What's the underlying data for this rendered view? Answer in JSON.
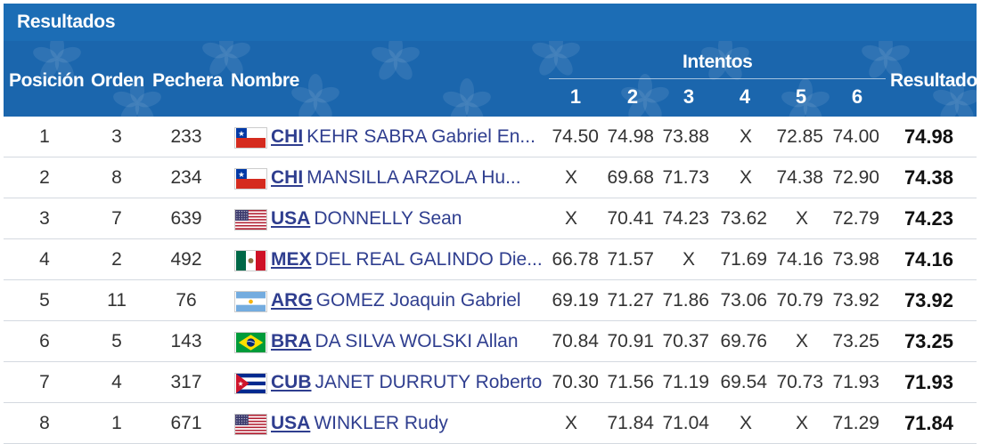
{
  "table_title": "Resultados",
  "headers": {
    "posicion": "Posición",
    "orden": "Orden",
    "pechera": "Pechera",
    "nombre": "Nombre",
    "intentos": "Intentos",
    "attempts": [
      "1",
      "2",
      "3",
      "4",
      "5",
      "6"
    ],
    "resultado": "Resultado"
  },
  "colors": {
    "title_bar": "#1c6db5",
    "header_bg": "#1b66ad",
    "name_link": "#2f3e8f"
  },
  "rows": [
    {
      "posicion": "1",
      "orden": "3",
      "pechera": "233",
      "flag": "chile-flag-icon",
      "country": "CHI",
      "name": "KEHR SABRA Gabriel En...",
      "attempts": [
        "74.50",
        "74.98",
        "73.88",
        "X",
        "72.85",
        "74.00"
      ],
      "resultado": "74.98"
    },
    {
      "posicion": "2",
      "orden": "8",
      "pechera": "234",
      "flag": "chile-flag-icon",
      "country": "CHI",
      "name": "MANSILLA ARZOLA Hu...",
      "attempts": [
        "X",
        "69.68",
        "71.73",
        "X",
        "74.38",
        "72.90"
      ],
      "resultado": "74.38"
    },
    {
      "posicion": "3",
      "orden": "7",
      "pechera": "639",
      "flag": "usa-flag-icon",
      "country": "USA",
      "name": "DONNELLY Sean",
      "attempts": [
        "X",
        "70.41",
        "74.23",
        "73.62",
        "X",
        "72.79"
      ],
      "resultado": "74.23"
    },
    {
      "posicion": "4",
      "orden": "2",
      "pechera": "492",
      "flag": "mexico-flag-icon",
      "country": "MEX",
      "name": "DEL REAL GALINDO Die...",
      "attempts": [
        "66.78",
        "71.57",
        "X",
        "71.69",
        "74.16",
        "73.98"
      ],
      "resultado": "74.16"
    },
    {
      "posicion": "5",
      "orden": "11",
      "pechera": "76",
      "flag": "argentina-flag-icon",
      "country": "ARG",
      "name": "GOMEZ Joaquin Gabriel",
      "attempts": [
        "69.19",
        "71.27",
        "71.86",
        "73.06",
        "70.79",
        "73.92"
      ],
      "resultado": "73.92"
    },
    {
      "posicion": "6",
      "orden": "5",
      "pechera": "143",
      "flag": "brazil-flag-icon",
      "country": "BRA",
      "name": "DA SILVA WOLSKI Allan",
      "attempts": [
        "70.84",
        "70.91",
        "70.37",
        "69.76",
        "X",
        "73.25"
      ],
      "resultado": "73.25"
    },
    {
      "posicion": "7",
      "orden": "4",
      "pechera": "317",
      "flag": "cuba-flag-icon",
      "country": "CUB",
      "name": "JANET DURRUTY Roberto",
      "attempts": [
        "70.30",
        "71.56",
        "71.19",
        "69.54",
        "70.73",
        "71.93"
      ],
      "resultado": "71.93"
    },
    {
      "posicion": "8",
      "orden": "1",
      "pechera": "671",
      "flag": "usa-flag-icon",
      "country": "USA",
      "name": "WINKLER Rudy",
      "attempts": [
        "X",
        "71.84",
        "71.04",
        "X",
        "X",
        "71.29"
      ],
      "resultado": "71.84"
    }
  ]
}
